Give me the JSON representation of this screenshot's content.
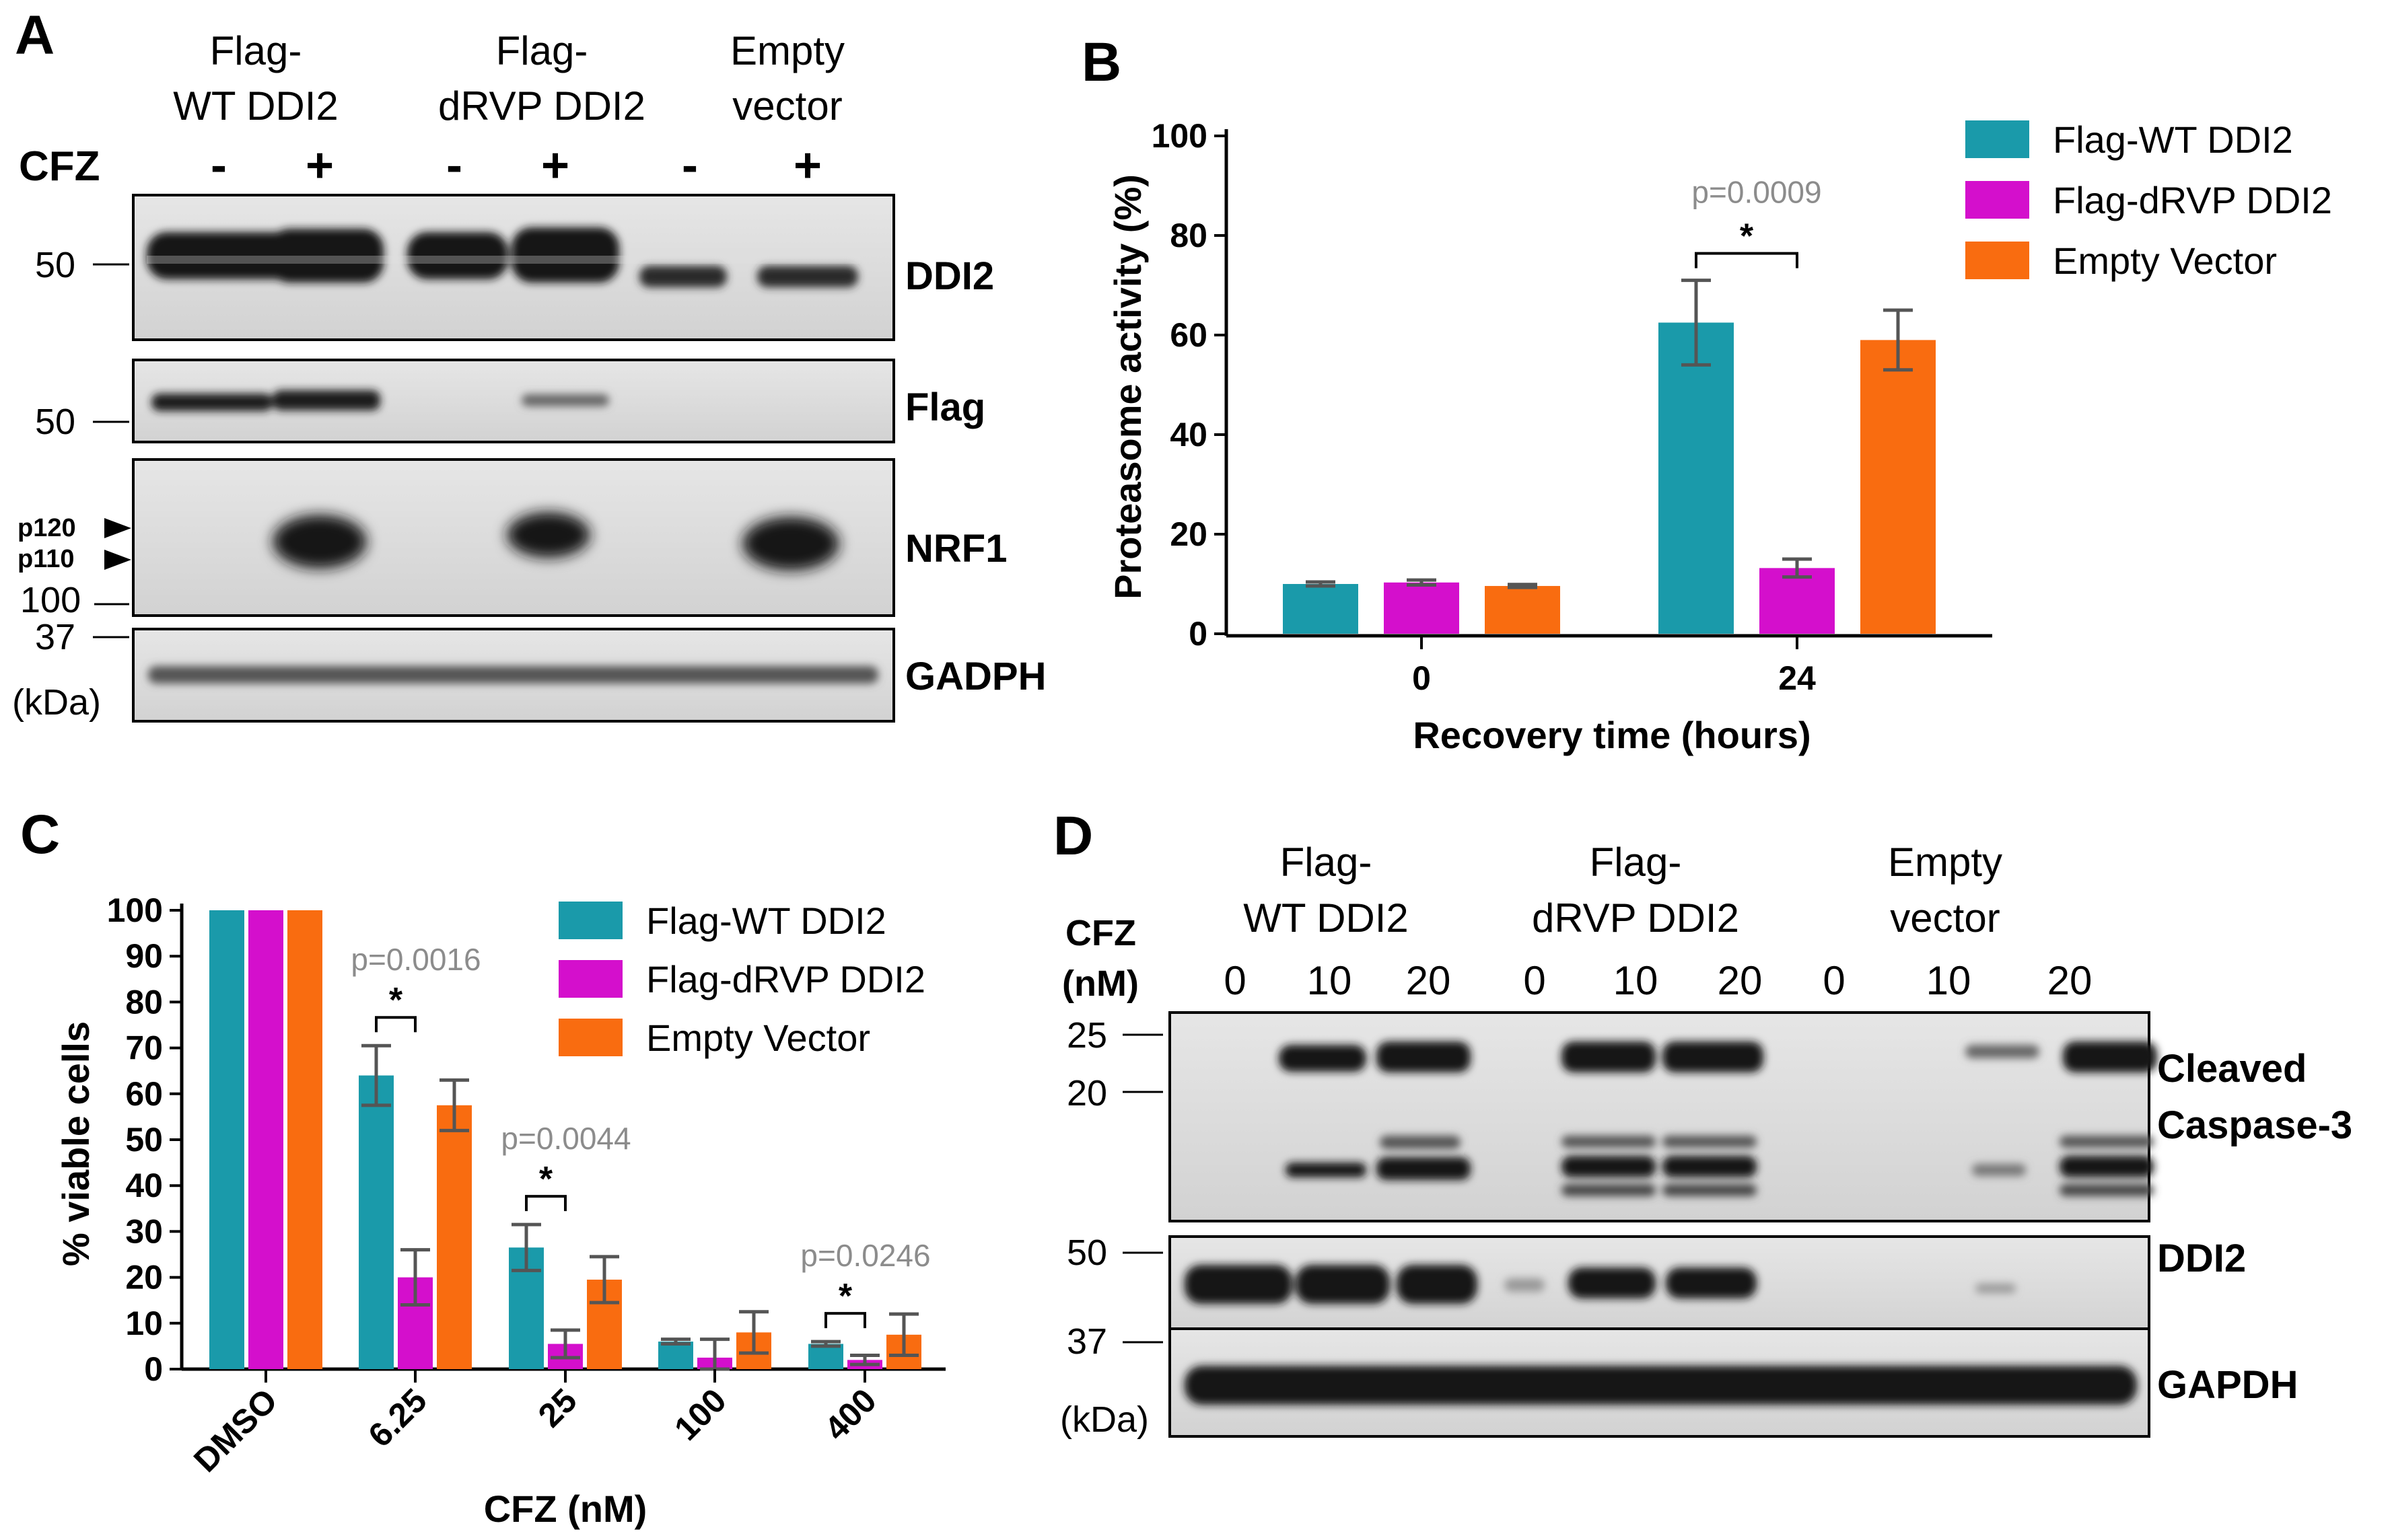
{
  "colors": {
    "wt": "#1a9aaa",
    "drvp": "#d40fcc",
    "empty": "#f96c10",
    "pvalue": "#8c8c8c",
    "errbar": "#555555"
  },
  "panel_a": {
    "label": "A",
    "groups": [
      {
        "line1": "Flag-",
        "line2": "WT DDI2"
      },
      {
        "line1": "Flag-",
        "line2": "dRVP DDI2"
      },
      {
        "line1": "Empty",
        "line2": "vector"
      }
    ],
    "treatment_label": "CFZ",
    "signs": [
      "-",
      "+",
      "-",
      "+",
      "-",
      "+"
    ],
    "mw_markers": [
      "50",
      "50",
      "100",
      "37"
    ],
    "arrow_labels": [
      "p120",
      "p110"
    ],
    "unit": "(kDa)",
    "blots": [
      "DDI2",
      "Flag",
      "NRF1",
      "GADPH"
    ]
  },
  "panel_d": {
    "label": "D",
    "groups": [
      {
        "line1": "Flag-",
        "line2": "WT DDI2"
      },
      {
        "line1": "Flag-",
        "line2": "dRVP DDI2"
      },
      {
        "line1": "Empty",
        "line2": "vector"
      }
    ],
    "treatment_label_1": "CFZ",
    "treatment_label_2": "(nM)",
    "doses": [
      "0",
      "10",
      "20",
      "0",
      "10",
      "20",
      "0",
      "10",
      "20"
    ],
    "mw_markers": [
      "25",
      "20",
      "50",
      "37"
    ],
    "unit": "(kDa)",
    "blots": [
      {
        "line1": "Cleaved",
        "line2": "Caspase-3"
      },
      {
        "line1": "DDI2",
        "line2": ""
      },
      {
        "line1": "GAPDH",
        "line2": ""
      }
    ]
  },
  "chart_data": [
    {
      "panel": "B",
      "type": "bar",
      "categories": [
        "0",
        "24"
      ],
      "series": [
        {
          "name": "Flag-WT DDI2",
          "values": [
            10,
            62.5
          ],
          "errors": [
            0.4,
            8.5
          ]
        },
        {
          "name": "Flag-dRVP DDI2",
          "values": [
            10.3,
            13.2
          ],
          "errors": [
            0.5,
            1.8
          ]
        },
        {
          "name": "Empty Vector",
          "values": [
            9.6,
            59
          ],
          "errors": [
            0.3,
            6
          ]
        }
      ],
      "xlabel": "Recovery time (hours)",
      "ylabel": "Proteasome activity (%)",
      "ylim": [
        0,
        100
      ],
      "yticks": [
        "0",
        "20",
        "40",
        "60",
        "80",
        "100"
      ],
      "annotations": [
        {
          "text": "p=0.0009",
          "star": "*",
          "category": "24"
        }
      ],
      "legend_position": "top-right"
    },
    {
      "panel": "C",
      "type": "bar",
      "categories": [
        "DMSO",
        "6.25",
        "25",
        "100",
        "400"
      ],
      "series": [
        {
          "name": "Flag-WT DDI2",
          "values": [
            100,
            64,
            26.5,
            6,
            5.5
          ],
          "errors": [
            0,
            6.5,
            5,
            0.5,
            0.5
          ]
        },
        {
          "name": "Flag-dRVP DDI2",
          "values": [
            100,
            20,
            5.5,
            2.5,
            2
          ],
          "errors": [
            0,
            6,
            3,
            4,
            1
          ]
        },
        {
          "name": "Empty Vector",
          "values": [
            100,
            57.5,
            19.5,
            8,
            7.5
          ],
          "errors": [
            0,
            5.5,
            5,
            4.5,
            4.5
          ]
        }
      ],
      "xlabel": "CFZ (nM)",
      "ylabel": "% viable cells",
      "ylim": [
        0,
        100
      ],
      "yticks": [
        "0",
        "10",
        "20",
        "30",
        "40",
        "50",
        "60",
        "70",
        "80",
        "90",
        "100"
      ],
      "annotations": [
        {
          "text": "p=0.0016",
          "star": "*",
          "category": "6.25"
        },
        {
          "text": "p=0.0044",
          "star": "*",
          "category": "25"
        },
        {
          "text": "p=0.0246",
          "star": "*",
          "category": "400"
        }
      ],
      "legend_position": "top-right"
    }
  ]
}
